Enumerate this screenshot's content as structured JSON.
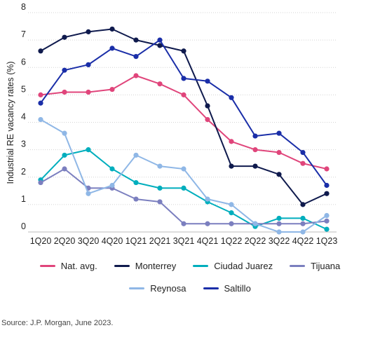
{
  "chart_data": {
    "type": "line",
    "title": "",
    "xlabel": "",
    "ylabel": "Industrial RE vacancy rates (%)",
    "ylim": [
      0,
      8
    ],
    "yticks": [
      0,
      1,
      2,
      3,
      4,
      5,
      6,
      7,
      8
    ],
    "grid": true,
    "legend_placement": "bottom",
    "x": [
      "1Q20",
      "2Q20",
      "3Q20",
      "4Q20",
      "1Q21",
      "2Q21",
      "3Q21",
      "4Q21",
      "1Q22",
      "2Q22",
      "3Q22",
      "4Q22",
      "1Q23"
    ],
    "series": [
      {
        "name": "Nat. avg.",
        "color": "#e0457b",
        "values": [
          5.0,
          5.1,
          5.1,
          5.2,
          5.7,
          5.4,
          5.0,
          4.1,
          3.3,
          3.0,
          2.9,
          2.5,
          2.3
        ]
      },
      {
        "name": "Monterrey",
        "color": "#0f1a4d",
        "values": [
          6.6,
          7.1,
          7.3,
          7.4,
          7.0,
          6.8,
          6.6,
          4.6,
          2.4,
          2.4,
          2.1,
          1.0,
          1.4
        ]
      },
      {
        "name": "Ciudad Juarez",
        "color": "#00aebd",
        "values": [
          1.9,
          2.8,
          3.0,
          2.3,
          1.8,
          1.6,
          1.6,
          1.1,
          0.7,
          0.2,
          0.5,
          0.5,
          0.1
        ]
      },
      {
        "name": "Tijuana",
        "color": "#7b7fbf",
        "values": [
          1.8,
          2.3,
          1.6,
          1.6,
          1.2,
          1.1,
          0.3,
          0.3,
          0.3,
          0.3,
          0.3,
          0.3,
          0.4
        ]
      },
      {
        "name": "Reynosa",
        "color": "#8fb7e6",
        "values": [
          4.1,
          3.6,
          1.4,
          1.7,
          2.8,
          2.4,
          2.3,
          1.2,
          1.0,
          0.3,
          0.0,
          0.0,
          0.6
        ]
      },
      {
        "name": "Saltillo",
        "color": "#1a2ea8",
        "values": [
          4.7,
          5.9,
          6.1,
          6.7,
          6.4,
          7.0,
          5.6,
          5.5,
          4.9,
          3.5,
          3.6,
          2.9,
          1.7
        ]
      }
    ]
  },
  "source": "Source: J.P. Morgan, June 2023."
}
